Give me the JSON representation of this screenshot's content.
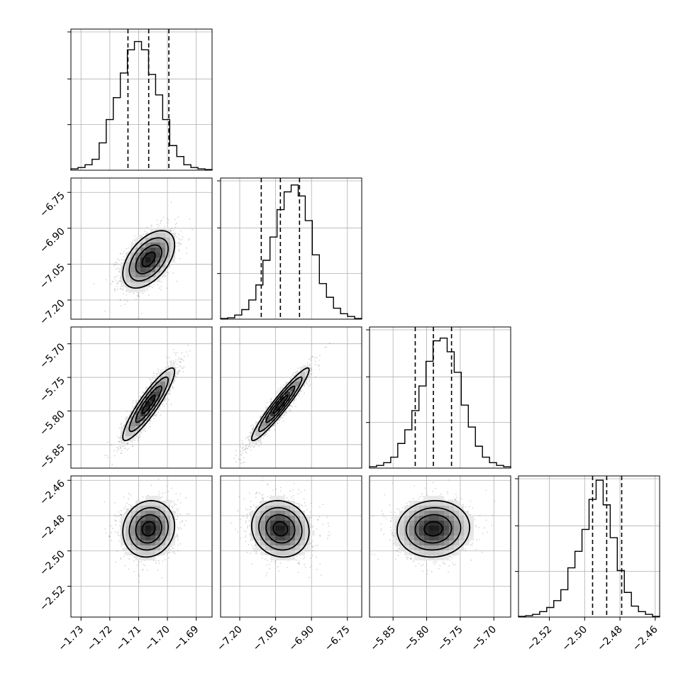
{
  "chart_data": {
    "type": "corner",
    "grid": true,
    "params": [
      {
        "range": [
          -1.7335,
          -1.6845
        ],
        "ticks": [
          -1.73,
          -1.72,
          -1.71,
          -1.7,
          -1.69
        ],
        "tick_labels": [
          "−1.73",
          "−1.72",
          "−1.71",
          "−1.70",
          "−1.69"
        ],
        "mean": -1.7065,
        "std": 0.0045,
        "quantiles": [
          -1.7137,
          -1.7065,
          -1.6995
        ]
      },
      {
        "range": [
          -7.28,
          -6.69
        ],
        "ticks": [
          -7.2,
          -7.05,
          -6.9,
          -6.75
        ],
        "tick_labels": [
          "−7.20",
          "−7.05",
          "−6.90",
          "−6.75"
        ],
        "mean": -7.03,
        "std": 0.06,
        "quantiles": [
          -7.11,
          -7.03,
          -6.95
        ]
      },
      {
        "range": [
          -5.885,
          -5.675
        ],
        "ticks": [
          -5.85,
          -5.8,
          -5.75,
          -5.7
        ],
        "tick_labels": [
          "−5.85",
          "−5.80",
          "−5.75",
          "−5.70"
        ],
        "mean": -5.79,
        "std": 0.027,
        "quantiles": [
          -5.817,
          -5.79,
          -5.763
        ]
      },
      {
        "range": [
          -2.5375,
          -2.4575
        ],
        "ticks": [
          -2.52,
          -2.5,
          -2.48,
          -2.46
        ],
        "tick_labels": [
          "−2.52",
          "−2.50",
          "−2.48",
          "−2.46"
        ],
        "mean": -2.4875,
        "std": 0.008,
        "quantiles": [
          -2.4955,
          -2.4875,
          -2.479
        ]
      }
    ],
    "correlations": [
      [
        1,
        0.5,
        0.9,
        0.1
      ],
      [
        0.5,
        1,
        0.95,
        -0.1
      ],
      [
        0.9,
        0.95,
        1,
        0.05
      ],
      [
        0.1,
        -0.1,
        0.05,
        1
      ]
    ],
    "histograms": [
      [
        0.01,
        0.02,
        0.04,
        0.08,
        0.2,
        0.37,
        0.53,
        0.71,
        0.88,
        0.94,
        0.88,
        0.7,
        0.55,
        0.37,
        0.18,
        0.1,
        0.04,
        0.02,
        0.01,
        0.005
      ],
      [
        0.005,
        0.01,
        0.03,
        0.07,
        0.14,
        0.25,
        0.43,
        0.6,
        0.8,
        0.93,
        0.98,
        0.9,
        0.72,
        0.47,
        0.26,
        0.16,
        0.08,
        0.04,
        0.02,
        0.005
      ],
      [
        0.01,
        0.02,
        0.04,
        0.08,
        0.18,
        0.28,
        0.42,
        0.6,
        0.78,
        0.93,
        0.95,
        0.85,
        0.7,
        0.46,
        0.3,
        0.16,
        0.08,
        0.04,
        0.02,
        0.01
      ],
      [
        0.005,
        0.01,
        0.02,
        0.04,
        0.07,
        0.12,
        0.2,
        0.36,
        0.48,
        0.64,
        0.86,
        1.0,
        0.82,
        0.58,
        0.34,
        0.18,
        0.08,
        0.04,
        0.02,
        0.005
      ]
    ],
    "hist_tick_fractions": [
      0.33,
      0.66,
      1.0
    ],
    "contour_levels_sigma": [
      0.5,
      1.0,
      1.5,
      2.0
    ]
  }
}
